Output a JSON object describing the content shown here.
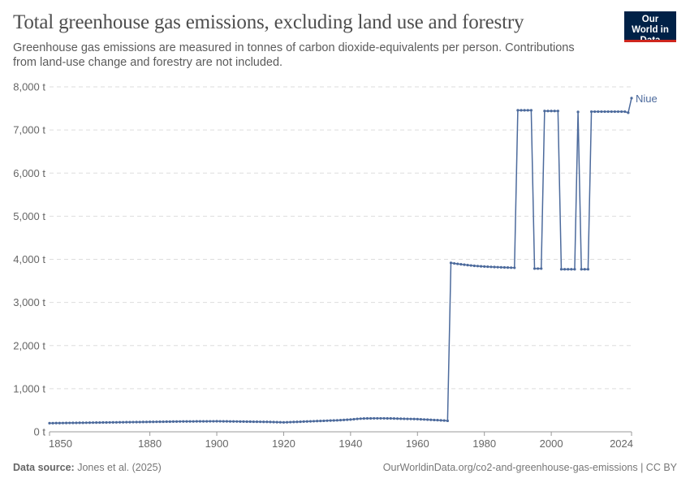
{
  "header": {
    "title": "Total greenhouse gas emissions, excluding land use and forestry",
    "subtitle": "Greenhouse gas emissions are measured in tonnes of carbon dioxide-equivalents per person. Contributions from land-use change and forestry are not included.",
    "logo_text": "Our World in Data"
  },
  "footer": {
    "source_label": "Data source:",
    "source": "Jones et al. (2025)",
    "url": "OurWorldinData.org/co2-and-greenhouse-gas-emissions | CC BY"
  },
  "colors": {
    "series": "#4c6a9c",
    "grid": "#dddddd",
    "logo_bg": "#002147",
    "logo_bar": "#ce261e"
  },
  "chart_data": {
    "type": "line",
    "title": "Total greenhouse gas emissions, excluding land use and forestry",
    "xlim": [
      1850,
      2024
    ],
    "ylim": [
      0,
      8000
    ],
    "x_ticks": [
      1850,
      1880,
      1900,
      1920,
      1940,
      1960,
      1980,
      2000,
      2024
    ],
    "y_ticks": [
      "0 t",
      "1,000 t",
      "2,000 t",
      "3,000 t",
      "4,000 t",
      "5,000 t",
      "6,000 t",
      "7,000 t",
      "8,000 t"
    ],
    "y_tick_values": [
      0,
      1000,
      2000,
      3000,
      4000,
      5000,
      6000,
      7000,
      8000
    ],
    "grid": "horizontal dashed",
    "legend": "right end label",
    "series": [
      {
        "name": "Niue",
        "values": [
          200,
          201,
          202,
          203,
          204,
          205,
          206,
          207,
          208,
          209,
          210,
          211,
          212,
          213,
          214,
          215,
          216,
          217,
          218,
          219,
          220,
          221,
          222,
          223,
          224,
          225,
          226,
          227,
          228,
          229,
          230,
          231,
          232,
          233,
          234,
          235,
          236,
          237,
          238,
          239,
          240,
          240,
          241,
          241,
          242,
          242,
          243,
          243,
          244,
          244,
          245,
          244,
          243,
          242,
          241,
          240,
          239,
          238,
          237,
          236,
          235,
          234,
          233,
          232,
          231,
          230,
          228,
          226,
          224,
          222,
          220,
          222,
          225,
          228,
          231,
          234,
          237,
          240,
          243,
          246,
          249,
          252,
          255,
          258,
          261,
          264,
          267,
          270,
          275,
          280,
          285,
          292,
          300,
          305,
          308,
          310,
          311,
          312,
          312,
          312,
          312,
          311,
          310,
          308,
          306,
          304,
          302,
          300,
          298,
          296,
          294,
          290,
          286,
          282,
          278,
          274,
          270,
          266,
          262,
          255,
          3917,
          3905,
          3895,
          3885,
          3875,
          3866,
          3858,
          3850,
          3844,
          3838,
          3833,
          3829,
          3825,
          3821,
          3818,
          3815,
          3812,
          3809,
          3806,
          3804,
          7457,
          7457,
          7457,
          7457,
          7457,
          3785,
          3785,
          3785,
          7440,
          7440,
          7440,
          7440,
          7440,
          3770,
          3770,
          3770,
          3770,
          3770,
          7420,
          3770,
          3770,
          3770,
          7425,
          7425,
          7425,
          7425,
          7425,
          7425,
          7425,
          7425,
          7425,
          7425,
          7425,
          7400,
          7740
        ]
      }
    ]
  }
}
